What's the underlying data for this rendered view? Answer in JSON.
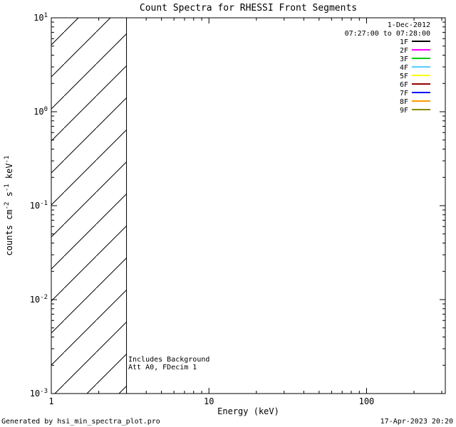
{
  "chart_data": {
    "type": "line",
    "title": "Count Spectra for RHESSI Front Segments",
    "xlabel": "Energy (keV)",
    "ylabel_plain": "counts cm^-2 s^-1 keV^-1",
    "ylabel_parts": [
      {
        "text": "counts cm",
        "sup": "-2"
      },
      {
        "text": " s",
        "sup": "-1"
      },
      {
        "text": " keV",
        "sup": "-1"
      }
    ],
    "xscale": "log",
    "yscale": "log",
    "xlim": [
      1,
      316
    ],
    "ylim": [
      0.001,
      10
    ],
    "grid": false,
    "x_ticks": [
      {
        "value": 1,
        "label": "1"
      },
      {
        "value": 10,
        "label": "10"
      },
      {
        "value": 100,
        "label": "100"
      }
    ],
    "y_ticks": [
      {
        "value": 10,
        "base": "10",
        "exp": "1"
      },
      {
        "value": 1,
        "base": "10",
        "exp": "0"
      },
      {
        "value": 0.1,
        "base": "10",
        "exp": "-1"
      },
      {
        "value": 0.01,
        "base": "10",
        "exp": "-2"
      },
      {
        "value": 0.001,
        "base": "10",
        "exp": "-3"
      }
    ],
    "series": [
      {
        "name": "1F",
        "color": "#000000"
      },
      {
        "name": "2F",
        "color": "#ff00ff"
      },
      {
        "name": "3F",
        "color": "#00cc00"
      },
      {
        "name": "4F",
        "color": "#55ccff"
      },
      {
        "name": "5F",
        "color": "#ffff00"
      },
      {
        "name": "6F",
        "color": "#990000"
      },
      {
        "name": "7F",
        "color": "#0000ff"
      },
      {
        "name": "8F",
        "color": "#ff9900"
      },
      {
        "name": "9F",
        "color": "#8a8a00"
      }
    ],
    "hatched_region": {
      "x_start": 1,
      "x_end": 3,
      "style": "diagonal-hatch"
    },
    "legend_position": "top-right",
    "legend": {
      "date": "1-Dec-2012",
      "time_range": "07:27:00 to 07:28:00"
    },
    "annotations": [
      "Includes Background",
      "Att A0, FDecim 1"
    ]
  },
  "footer": {
    "left": "Generated by hsi_min_spectra_plot.pro",
    "right": "17-Apr-2023 20:20"
  }
}
